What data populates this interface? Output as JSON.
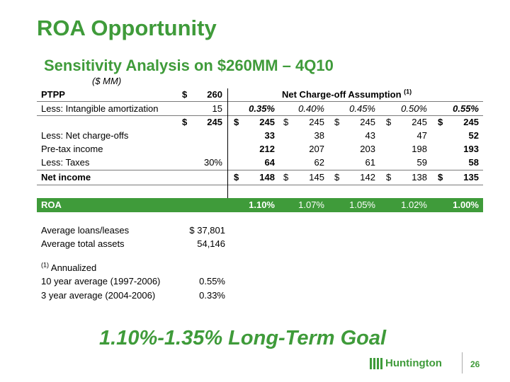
{
  "title": "ROA Opportunity",
  "subtitle": "Sensitivity Analysis on $260MM – 4Q10",
  "units": "($ MM)",
  "table": {
    "nco_header": "Net Charge-off Assumption",
    "nco_header_note": "(1)",
    "rows": {
      "ptpp": {
        "label": "PTPP",
        "dollar": "$",
        "value": "260"
      },
      "intangible": {
        "label": "Less: Intangible amortization",
        "value": "15"
      },
      "base": {
        "dollar": "$",
        "value": "245"
      },
      "nco": {
        "label": "Less: Net charge-offs"
      },
      "pretax": {
        "label": "Pre-tax income"
      },
      "taxes": {
        "label": "Less: Taxes",
        "value": "30%"
      },
      "net": {
        "label": "Net income"
      },
      "roa": {
        "label": "ROA"
      }
    },
    "scenarios": [
      {
        "rate": "0.35%",
        "ptpp_dollar": "$",
        "ptpp": "245",
        "nco": "33",
        "pretax": "212",
        "taxes": "64",
        "net_dollar": "$",
        "net": "148",
        "roa": "1.10%"
      },
      {
        "rate": "0.40%",
        "ptpp_dollar": "$",
        "ptpp": "245",
        "nco": "38",
        "pretax": "207",
        "taxes": "62",
        "net_dollar": "$",
        "net": "145",
        "roa": "1.07%"
      },
      {
        "rate": "0.45%",
        "ptpp_dollar": "$",
        "ptpp": "245",
        "nco": "43",
        "pretax": "203",
        "taxes": "61",
        "net_dollar": "$",
        "net": "142",
        "roa": "1.05%"
      },
      {
        "rate": "0.50%",
        "ptpp_dollar": "$",
        "ptpp": "245",
        "nco": "47",
        "pretax": "198",
        "taxes": "59",
        "net_dollar": "$",
        "net": "138",
        "roa": "1.02%"
      },
      {
        "rate": "0.55%",
        "ptpp_dollar": "$",
        "ptpp": "245",
        "nco": "52",
        "pretax": "193",
        "taxes": "58",
        "net_dollar": "$",
        "net": "135",
        "roa": "1.00%"
      }
    ]
  },
  "averages": {
    "loans_label": "Average loans/leases",
    "loans_value": "$ 37,801",
    "assets_label": "Average total assets",
    "assets_value": "54,146"
  },
  "footnote": {
    "marker": "(1)",
    "label": "Annualized",
    "rows": [
      {
        "label": "10 year average (1997-2006)",
        "value": "0.55%"
      },
      {
        "label": "3 year average (2004-2006)",
        "value": "0.33%"
      }
    ]
  },
  "goal": "1.10%-1.35% Long-Term Goal",
  "logo_text": "Huntington",
  "page_number": "26",
  "colors": {
    "brand_green": "#3f9b3a"
  }
}
